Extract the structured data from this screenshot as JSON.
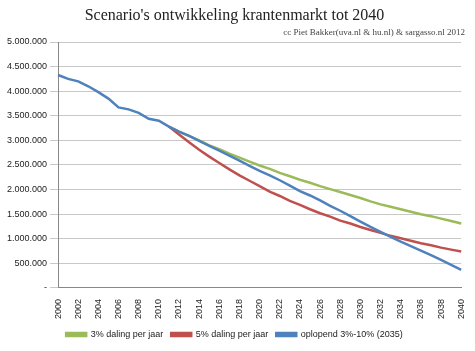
{
  "chart_data": {
    "type": "line",
    "title": "Scenario's ontwikkeling krantenmarkt tot 2040",
    "subtitle": "cc Piet Bakker(uva.nl & hu.nl) & sargasso.nl 2012",
    "categories": [
      "2000",
      null,
      "2002",
      null,
      "2004",
      null,
      "2006",
      null,
      "2008",
      null,
      "2010",
      null,
      "2012",
      null,
      "2014",
      null,
      "2016",
      null,
      "2018",
      null,
      "2020",
      null,
      "2022",
      null,
      "2024",
      null,
      "2026",
      null,
      "2028",
      null,
      "2030",
      null,
      "2032",
      null,
      "2034",
      null,
      "2036",
      null,
      "2038",
      null,
      "2040"
    ],
    "series": [
      {
        "name": "3% daling per jaar",
        "color": "#9bbb59",
        "values": [
          null,
          null,
          null,
          null,
          null,
          null,
          null,
          null,
          null,
          null,
          null,
          3280000,
          3180000,
          3090000,
          3000000,
          2900000,
          2820000,
          2730000,
          2650000,
          2570000,
          2490000,
          2420000,
          2340000,
          2270000,
          2200000,
          2140000,
          2070000,
          2010000,
          1950000,
          1890000,
          1830000,
          1760000,
          1700000,
          1650000,
          1600000,
          1550000,
          1500000,
          1460000,
          1410000,
          1360000,
          1310000
        ]
      },
      {
        "name": "5% daling per jaar",
        "color": "#c0504d",
        "values": [
          null,
          null,
          null,
          null,
          null,
          null,
          null,
          null,
          null,
          null,
          null,
          3280000,
          3120000,
          2960000,
          2810000,
          2670000,
          2540000,
          2410000,
          2290000,
          2180000,
          2070000,
          1960000,
          1870000,
          1770000,
          1690000,
          1600000,
          1520000,
          1450000,
          1370000,
          1310000,
          1240000,
          1180000,
          1120000,
          1060000,
          1010000,
          960000,
          910000,
          870000,
          820000,
          780000,
          740000
        ]
      },
      {
        "name": "oplopend 3%-10% (2035)",
        "color": "#4f81bd",
        "values": [
          4330000,
          4250000,
          4200000,
          4100000,
          3980000,
          3850000,
          3670000,
          3630000,
          3560000,
          3440000,
          3400000,
          3280000,
          3180000,
          3090000,
          2990000,
          2890000,
          2790000,
          2690000,
          2590000,
          2480000,
          2380000,
          2290000,
          2190000,
          2080000,
          1970000,
          1880000,
          1780000,
          1670000,
          1570000,
          1460000,
          1350000,
          1240000,
          1140000,
          1040000,
          940000,
          850000,
          760000,
          670000,
          570000,
          470000,
          370000
        ]
      }
    ],
    "ylim": [
      0,
      5000000
    ],
    "yticks": [
      {
        "value": 0,
        "label": "-"
      },
      {
        "value": 500000,
        "label": "500.000"
      },
      {
        "value": 1000000,
        "label": "1.000.000"
      },
      {
        "value": 1500000,
        "label": "1.500.000"
      },
      {
        "value": 2000000,
        "label": "2.000.000"
      },
      {
        "value": 2500000,
        "label": "2.500.000"
      },
      {
        "value": 3000000,
        "label": "3.000.000"
      },
      {
        "value": 3500000,
        "label": "3.500.000"
      },
      {
        "value": 4000000,
        "label": "4.000.000"
      },
      {
        "value": 4500000,
        "label": "4.500.000"
      },
      {
        "value": 5000000,
        "label": "5.000.000"
      }
    ],
    "grid": true,
    "legend": "bottom"
  }
}
